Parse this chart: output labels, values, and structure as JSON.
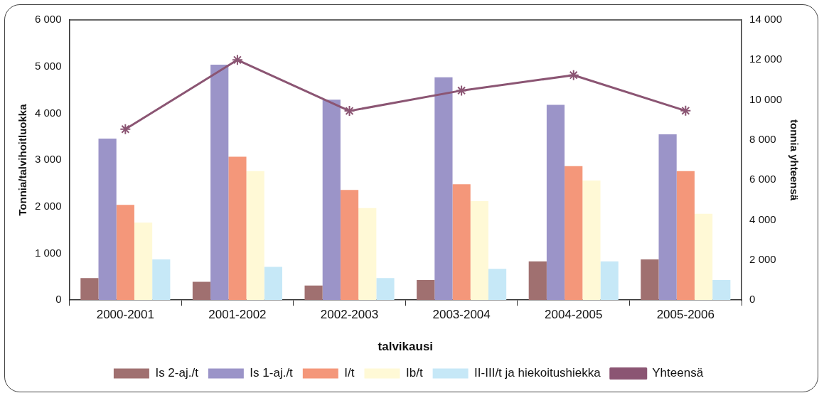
{
  "chart_data": {
    "type": "bar",
    "xlabel": "talvikausi",
    "ylabel": "Tonnia/talvihoitluokka",
    "y2label": "tonnia yhteensä",
    "categories": [
      "2000-2001",
      "2001-2002",
      "2002-2003",
      "2003-2004",
      "2004-2005",
      "2005-2006"
    ],
    "series": [
      {
        "name": "Is 2-aj./t",
        "color": "#a07070",
        "values": [
          470,
          390,
          310,
          430,
          830,
          870
        ]
      },
      {
        "name": "Is 1-aj./t",
        "color": "#9b94c8",
        "values": [
          3460,
          5040,
          4290,
          4770,
          4180,
          3550
        ]
      },
      {
        "name": "I/t",
        "color": "#f4977a",
        "values": [
          2040,
          3070,
          2360,
          2480,
          2870,
          2760
        ]
      },
      {
        "name": "Ib/t",
        "color": "#fff9d6",
        "values": [
          1660,
          2760,
          1970,
          2120,
          2560,
          1850
        ]
      },
      {
        "name": "II-III/t ja hiekoitushiekka",
        "color": "#c6e8f7",
        "values": [
          870,
          710,
          470,
          670,
          830,
          430
        ]
      },
      {
        "name": "Yhteensä",
        "type": "line",
        "axis": "y2",
        "color": "#8b5573",
        "marker": "cross",
        "values": [
          8540,
          12000,
          9450,
          10470,
          11240,
          9460
        ]
      }
    ],
    "ylim": [
      0,
      6000
    ],
    "yticks": [
      {
        "value": 0,
        "label": "0"
      },
      {
        "value": 1000,
        "label": "1 000"
      },
      {
        "value": 2000,
        "label": "2 000"
      },
      {
        "value": 3000,
        "label": "3 000"
      },
      {
        "value": 4000,
        "label": "4 000"
      },
      {
        "value": 5000,
        "label": "5 000"
      },
      {
        "value": 6000,
        "label": "6 000"
      }
    ],
    "y2lim": [
      0,
      14000
    ],
    "y2ticks": [
      {
        "value": 0,
        "label": "0"
      },
      {
        "value": 2000,
        "label": "2 000"
      },
      {
        "value": 4000,
        "label": "4 000"
      },
      {
        "value": 6000,
        "label": "6 000"
      },
      {
        "value": 8000,
        "label": "8 000"
      },
      {
        "value": 10000,
        "label": "10 000"
      },
      {
        "value": 12000,
        "label": "12 000"
      },
      {
        "value": 14000,
        "label": "14 000"
      }
    ],
    "grid": false,
    "legend": "bottom"
  }
}
